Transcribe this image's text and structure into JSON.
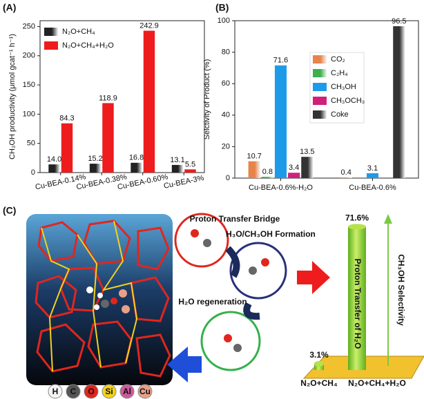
{
  "chart_data": [
    {
      "type": "bar",
      "panel_label": "(A)",
      "y_label": "CH₃OH productivity (μmol gcat⁻¹ h⁻¹)",
      "categories": [
        "Cu-BEA-0.14%",
        "Cu-BEA-0.38%",
        "Cu-BEA-0.60%",
        "Cu-BEA-3%"
      ],
      "series": [
        {
          "name": "N₂O+CH₄",
          "color": "#222222",
          "gradient": true,
          "values": [
            14.0,
            15.2,
            16.8,
            13.1
          ],
          "value_labels": [
            "14.0",
            "15.2",
            "16.8",
            "13.1"
          ]
        },
        {
          "name": "N₂O+CH₄+H₂O",
          "color": "#ee1c1c",
          "gradient": false,
          "values": [
            84.3,
            118.9,
            242.9,
            5.5
          ],
          "value_labels": [
            "84.3",
            "118.9",
            "242.9",
            "5.5"
          ]
        }
      ],
      "ylim": [
        0,
        260
      ],
      "yticks": [
        0,
        50,
        100,
        150,
        200,
        250
      ],
      "legend": "upper left"
    },
    {
      "type": "bar",
      "panel_label": "(B)",
      "y_label": "Selctivity of Product (%)",
      "categories": [
        "Cu-BEA-0.6%-H₂O",
        "Cu-BEA-0.6%"
      ],
      "series": [
        {
          "name": "CO₂",
          "color": "#e8844a",
          "gradient": true,
          "values": [
            10.7,
            0.4
          ]
        },
        {
          "name": "C₂H₄",
          "color": "#3cb04a",
          "gradient": true,
          "values": [
            0.8,
            null
          ]
        },
        {
          "name": "CH₃OH",
          "color": "#1e9be8",
          "gradient": false,
          "values": [
            71.6,
            3.1
          ]
        },
        {
          "name": "CH₃OCH₃",
          "color": "#d0207a",
          "gradient": false,
          "values": [
            3.4,
            null
          ]
        },
        {
          "name": "Coke",
          "color": "#333333",
          "gradient": true,
          "values": [
            13.5,
            96.5
          ]
        }
      ],
      "ylim": [
        0,
        100
      ],
      "yticks": [
        0,
        20,
        40,
        60,
        80,
        100
      ],
      "legend": "center"
    }
  ],
  "diagram": {
    "panel_label": "(C)",
    "steps": [
      "Proton Transfer Bridge",
      "H₃O/CH₃OH Formation",
      "H₂O regeneration"
    ],
    "bars": {
      "categories": [
        "N₂O+CH₄",
        "N₂O+CH₄+H₂O"
      ],
      "values": [
        3.1,
        71.6
      ],
      "value_labels": [
        "3.1%",
        "71.6%"
      ]
    },
    "cylinder_label": "Proton Transfer of H₂O",
    "axis_label": "CH₃OH Selectivity",
    "atoms": [
      "H",
      "C",
      "O",
      "Si",
      "Al",
      "Cu"
    ]
  }
}
